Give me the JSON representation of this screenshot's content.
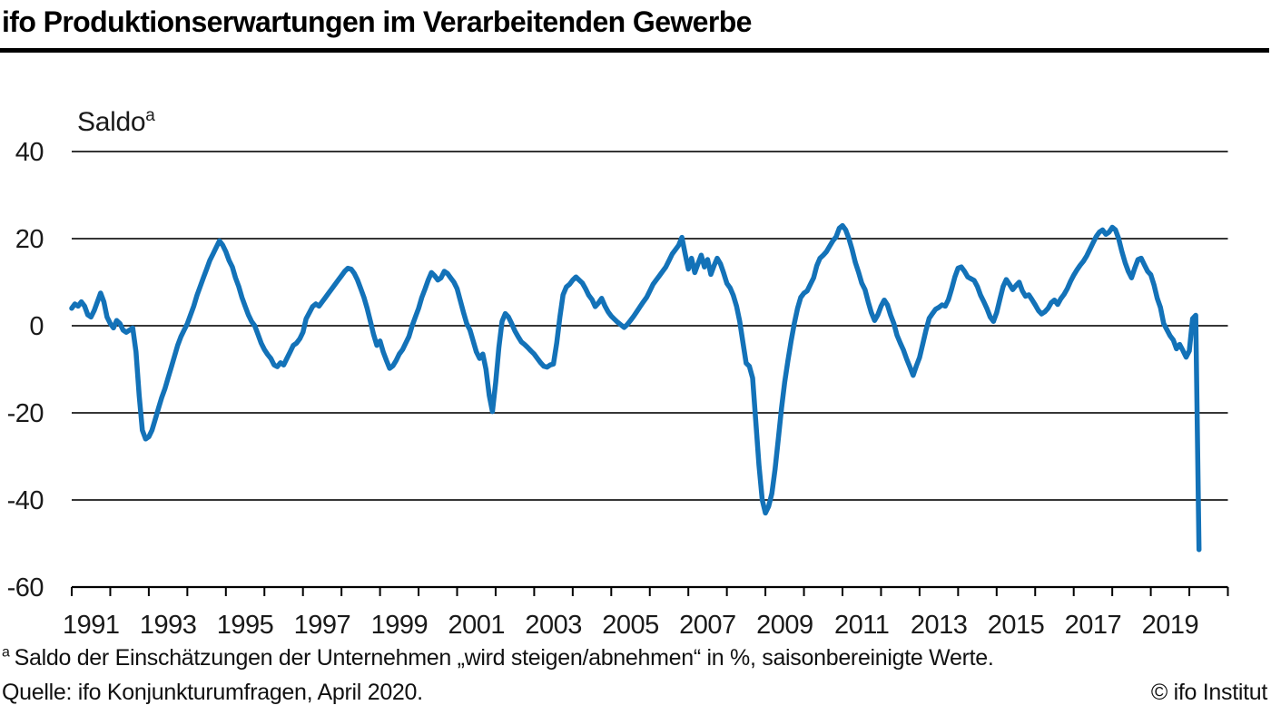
{
  "header": {
    "title": "ifo Produktionserwartungen im Verarbeitenden Gewerbe"
  },
  "chart_data": {
    "type": "line",
    "title": "ifo Produktionserwartungen im Verarbeitenden Gewerbe",
    "y_axis_label": "Saldo",
    "y_axis_label_superscript": "a",
    "ylim": [
      -60,
      40
    ],
    "y_ticks": [
      40,
      20,
      0,
      -20,
      -40,
      -60
    ],
    "x_tick_labels": [
      "1991",
      "1993",
      "1995",
      "1997",
      "1999",
      "2001",
      "2003",
      "2005",
      "2007",
      "2009",
      "2011",
      "2013",
      "2015",
      "2017",
      "2019"
    ],
    "x_year_span": [
      1991,
      2021
    ],
    "grid": true,
    "legend": "none",
    "line_color": "#1372b8",
    "grid_color": "#1a1a1a",
    "axis_color": "#000000",
    "series": [
      {
        "name": "Produktionserwartungen Saldo",
        "frequency": "monthly",
        "start": "1991-01",
        "end": "2020-04",
        "values": [
          4,
          5,
          4.5,
          5.5,
          4.5,
          2.5,
          2,
          3.5,
          5.5,
          7.5,
          5.5,
          2,
          0.5,
          -0.5,
          1.2,
          0.5,
          -1,
          -1.5,
          -1,
          -0.5,
          -6,
          -16,
          -24,
          -26,
          -25.5,
          -24,
          -21.5,
          -19,
          -16.5,
          -14.5,
          -12,
          -9.5,
          -7,
          -4.5,
          -2.5,
          -1,
          0.5,
          2.5,
          4.5,
          7,
          9,
          11,
          13,
          15,
          16.5,
          18,
          19.5,
          18.5,
          17,
          15,
          13.5,
          11,
          9,
          6.5,
          4.5,
          2.5,
          1,
          0,
          -2,
          -4,
          -5.5,
          -6.6,
          -7.5,
          -9,
          -9.4,
          -8.5,
          -9,
          -7.5,
          -6,
          -4.5,
          -4,
          -3,
          -1.5,
          1.6,
          3,
          4.4,
          5,
          4.5,
          5.5,
          6.5,
          7.5,
          8.5,
          9.5,
          10.5,
          11.5,
          12.5,
          13.2,
          13,
          12,
          10.5,
          8.5,
          6.5,
          4,
          1,
          -2,
          -4.5,
          -3.5,
          -6,
          -8,
          -9.8,
          -9.2,
          -8,
          -6.5,
          -5.5,
          -4,
          -2.5,
          0,
          2,
          4,
          6.5,
          8.4,
          10.5,
          12.2,
          11.5,
          10.5,
          11,
          12.5,
          12,
          11,
          10,
          8.5,
          5.8,
          3,
          0.5,
          -1,
          -3.5,
          -6,
          -7.5,
          -6.5,
          -10,
          -16,
          -19.7,
          -13,
          -5,
          1,
          2.8,
          2,
          0.5,
          -1.2,
          -2.5,
          -3.7,
          -4.3,
          -5,
          -5.8,
          -6.5,
          -7.5,
          -8.5,
          -9.3,
          -9.5,
          -9,
          -8.8,
          -4,
          2,
          7.1,
          8.9,
          9.5,
          10.5,
          11.2,
          10.5,
          9.8,
          8.5,
          7,
          6,
          4.4,
          5.2,
          6.3,
          4.6,
          3.2,
          2.2,
          1.5,
          0.8,
          0.2,
          -0.4,
          0.3,
          1.2,
          2.2,
          3.3,
          4.4,
          5.5,
          6.5,
          8,
          9.5,
          10.5,
          11.5,
          12.5,
          13.5,
          15,
          16.5,
          17.5,
          18.5,
          20.3,
          16.5,
          13,
          15.5,
          12.2,
          14.2,
          16.2,
          13.5,
          15.2,
          11.8,
          13.8,
          15.5,
          14.2,
          12.1,
          9.7,
          8.7,
          7,
          4.5,
          1,
          -3.8,
          -8.6,
          -9.3,
          -12,
          -22,
          -32,
          -40,
          -43,
          -41.5,
          -38.5,
          -33,
          -26,
          -19,
          -13,
          -8,
          -3.5,
          0.5,
          4,
          6.5,
          7.5,
          8,
          9.5,
          11,
          13.8,
          15.5,
          16.2,
          17,
          18.3,
          19.5,
          20.4,
          22.4,
          23,
          22,
          20,
          17.5,
          14.5,
          12.3,
          9.8,
          8.3,
          5.5,
          3,
          1.2,
          2.5,
          4.5,
          5.9,
          4.8,
          2.4,
          0.5,
          -2.2,
          -4,
          -5.6,
          -7.7,
          -9.5,
          -11.4,
          -9.2,
          -7.3,
          -4.2,
          -1,
          1.7,
          2.8,
          3.8,
          4.2,
          4.8,
          4.5,
          6,
          8.5,
          11.2,
          13.2,
          13.5,
          12.5,
          11.2,
          10.8,
          10.4,
          9,
          7,
          5.5,
          3.9,
          2,
          1,
          3,
          6,
          9,
          10.6,
          9.5,
          8.3,
          9.2,
          10,
          8,
          6.8,
          7.1,
          6,
          4.8,
          3.5,
          2.7,
          3.2,
          4,
          5.3,
          5.9,
          4.9,
          6.2,
          7.2,
          8.5,
          10.2,
          11.6,
          12.8,
          13.9,
          14.8,
          16,
          17.5,
          19,
          20.5,
          21.5,
          22,
          21,
          21.5,
          22.6,
          22,
          20,
          17,
          14.5,
          12.5,
          11,
          13.2,
          15.2,
          15.5,
          14,
          12.5,
          11.7,
          9.4,
          6.3,
          4.2,
          0.5,
          -0.9,
          -2.3,
          -3.3,
          -5.3,
          -4.3,
          -5.7,
          -7.2,
          -5.8,
          1.6,
          2.4,
          -51.4
        ]
      }
    ]
  },
  "footnotes": {
    "marker": "a",
    "note": "Saldo der Einschätzungen der Unternehmen „wird steigen/abnehmen“ in %, saisonbereinigte Werte.",
    "source": "Quelle: ifo Konjunkturumfragen, April 2020.",
    "copyright": "© ifo Institut"
  }
}
